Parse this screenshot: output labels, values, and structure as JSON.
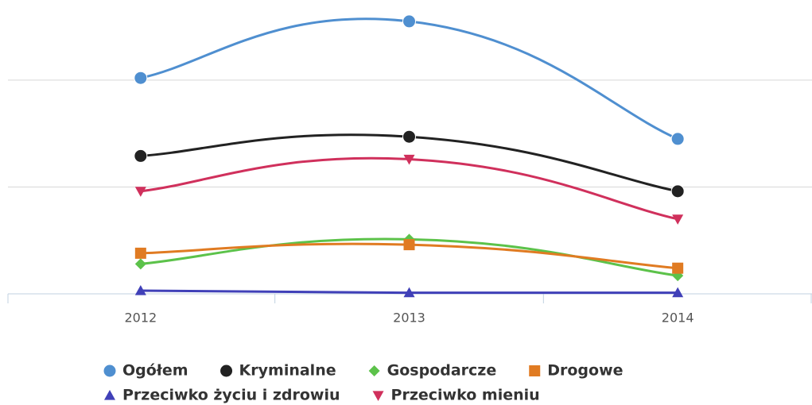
{
  "chart_data": {
    "type": "line",
    "categories": [
      "2012",
      "2013",
      "2014"
    ],
    "ylim": [
      0,
      2.75
    ],
    "yticks": [
      0,
      1,
      2
    ],
    "grid": true,
    "series": [
      {
        "name": "Ogółem",
        "color": "#4f8fd0",
        "marker": "circle",
        "values": [
          2.02,
          2.55,
          1.45
        ]
      },
      {
        "name": "Kryminalne",
        "color": "#222222",
        "marker": "circle",
        "values": [
          1.29,
          1.47,
          0.96
        ]
      },
      {
        "name": "Gospodarcze",
        "color": "#5cc24a",
        "marker": "diamond",
        "values": [
          0.28,
          0.51,
          0.17
        ]
      },
      {
        "name": "Drogowe",
        "color": "#e07b22",
        "marker": "square",
        "values": [
          0.38,
          0.46,
          0.24
        ]
      },
      {
        "name": "Przeciwko życiu i zdrowiu",
        "color": "#4040b8",
        "marker": "triangle",
        "values": [
          0.03,
          0.01,
          0.01
        ]
      },
      {
        "name": "Przeciwko mieniu",
        "color": "#d0305c",
        "marker": "triangle-down",
        "values": [
          0.96,
          1.26,
          0.7
        ]
      }
    ]
  }
}
